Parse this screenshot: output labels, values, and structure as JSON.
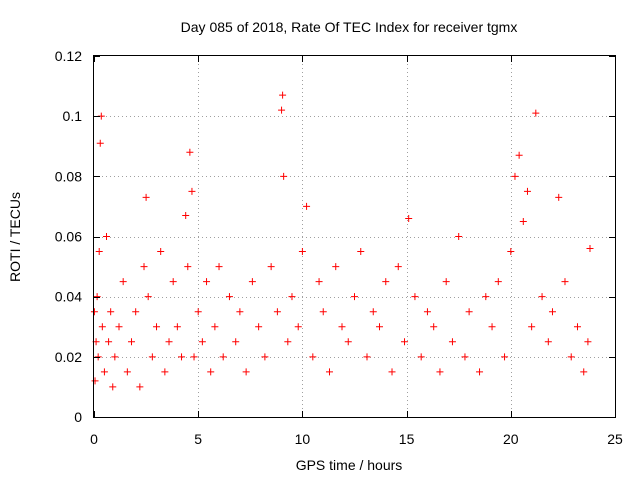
{
  "chart_data": {
    "type": "scatter",
    "title": "Day 085 of 2018, Rate Of TEC Index for receiver tgmx",
    "xlabel": "GPS time / hours",
    "ylabel": "ROTI / TECUs",
    "xlim": [
      0,
      25
    ],
    "ylim": [
      0,
      0.12
    ],
    "grid": true,
    "marker": "+",
    "color": "#ff0000",
    "x_ticks": [
      {
        "value": 0,
        "label": "0"
      },
      {
        "value": 5,
        "label": "5"
      },
      {
        "value": 10,
        "label": "10"
      },
      {
        "value": 15,
        "label": "15"
      },
      {
        "value": 20,
        "label": "20"
      },
      {
        "value": 25,
        "label": "25"
      }
    ],
    "y_ticks": [
      {
        "value": 0,
        "label": "0"
      },
      {
        "value": 0.02,
        "label": "0.02"
      },
      {
        "value": 0.04,
        "label": "0.04"
      },
      {
        "value": 0.06,
        "label": "0.06"
      },
      {
        "value": 0.08,
        "label": "0.08"
      },
      {
        "value": 0.1,
        "label": "0.1"
      },
      {
        "value": 0.12,
        "label": "0.12"
      }
    ],
    "series": [
      {
        "name": "ROTI",
        "x": [
          0.02,
          0.05,
          0.1,
          0.15,
          0.2,
          0.25,
          0.3,
          0.35,
          0.4,
          0.5,
          0.6,
          0.7,
          0.8,
          0.9,
          1.0,
          1.2,
          1.4,
          1.6,
          1.8,
          2.0,
          2.2,
          2.4,
          2.5,
          2.6,
          2.8,
          3.0,
          3.2,
          3.4,
          3.6,
          3.8,
          4.0,
          4.2,
          4.4,
          4.5,
          4.6,
          4.7,
          4.8,
          5.0,
          5.2,
          5.4,
          5.6,
          5.8,
          6.0,
          6.2,
          6.5,
          6.8,
          7.0,
          7.3,
          7.6,
          7.9,
          8.2,
          8.5,
          8.8,
          9.0,
          9.05,
          9.1,
          9.3,
          9.5,
          9.8,
          10.0,
          10.2,
          10.5,
          10.8,
          11.0,
          11.3,
          11.6,
          11.9,
          12.2,
          12.5,
          12.8,
          13.1,
          13.4,
          13.7,
          14.0,
          14.3,
          14.6,
          14.9,
          15.1,
          15.4,
          15.7,
          16.0,
          16.3,
          16.6,
          16.9,
          17.2,
          17.5,
          17.8,
          18.0,
          18.5,
          18.8,
          19.1,
          19.4,
          19.7,
          20.0,
          20.2,
          20.4,
          20.6,
          20.8,
          21.0,
          21.2,
          21.5,
          21.8,
          22.0,
          22.3,
          22.6,
          22.9,
          23.2,
          23.5,
          23.7,
          23.8
        ],
        "y": [
          0.035,
          0.012,
          0.025,
          0.04,
          0.02,
          0.055,
          0.091,
          0.1,
          0.03,
          0.015,
          0.06,
          0.025,
          0.035,
          0.01,
          0.02,
          0.03,
          0.045,
          0.015,
          0.025,
          0.035,
          0.01,
          0.05,
          0.073,
          0.04,
          0.02,
          0.03,
          0.055,
          0.015,
          0.025,
          0.045,
          0.03,
          0.02,
          0.067,
          0.05,
          0.088,
          0.075,
          0.02,
          0.035,
          0.025,
          0.045,
          0.015,
          0.03,
          0.05,
          0.02,
          0.04,
          0.025,
          0.035,
          0.015,
          0.045,
          0.03,
          0.02,
          0.05,
          0.035,
          0.102,
          0.107,
          0.08,
          0.025,
          0.04,
          0.03,
          0.055,
          0.07,
          0.02,
          0.045,
          0.035,
          0.015,
          0.05,
          0.03,
          0.025,
          0.04,
          0.055,
          0.02,
          0.035,
          0.03,
          0.045,
          0.015,
          0.05,
          0.025,
          0.066,
          0.04,
          0.02,
          0.035,
          0.03,
          0.015,
          0.045,
          0.025,
          0.06,
          0.02,
          0.035,
          0.015,
          0.04,
          0.03,
          0.045,
          0.02,
          0.055,
          0.08,
          0.087,
          0.065,
          0.075,
          0.03,
          0.101,
          0.04,
          0.025,
          0.035,
          0.073,
          0.045,
          0.02,
          0.03,
          0.015,
          0.025,
          0.056
        ]
      }
    ]
  }
}
